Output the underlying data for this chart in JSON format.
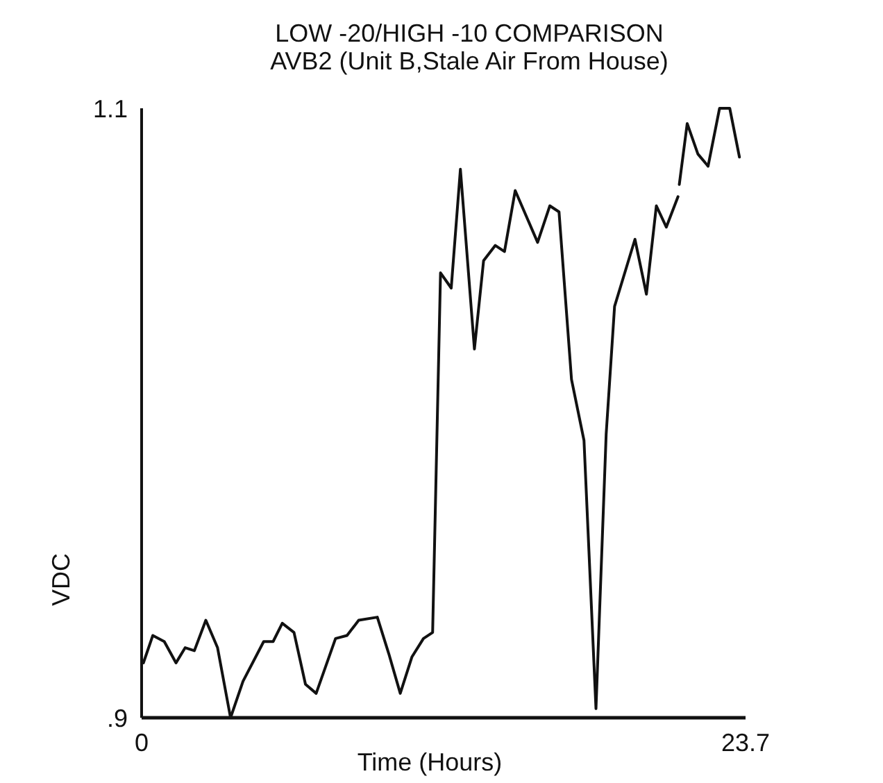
{
  "chart_data": {
    "type": "line",
    "title": "LOW -20/HIGH -10 COMPARISON",
    "subtitle": "AVB2 (Unit B,Stale Air From House)",
    "xlabel": "Time (Hours)",
    "ylabel": "VDC",
    "x": [
      0.07,
      0.44,
      0.89,
      1.35,
      1.71,
      2.07,
      2.52,
      2.98,
      3.49,
      3.98,
      4.79,
      5.16,
      5.52,
      5.98,
      6.43,
      6.85,
      7.61,
      8.06,
      8.52,
      9.25,
      9.7,
      10.15,
      10.61,
      11.06,
      11.42,
      11.73,
      12.15,
      12.51,
      13.06,
      13.42,
      13.88,
      14.24,
      14.66,
      15.54,
      16.02,
      16.38,
      16.87,
      17.36,
      17.83,
      18.23,
      18.56,
      19.36,
      19.81,
      20.2,
      20.59,
      21.05,
      21.08,
      21.1,
      21.41,
      21.83,
      22.23,
      22.68,
      23.08,
      23.46
    ],
    "series": [
      {
        "color": "#111111",
        "values": [
          0.918,
          0.927,
          0.925,
          0.918,
          0.923,
          0.922,
          0.932,
          0.923,
          0.9,
          0.912,
          0.925,
          0.925,
          0.931,
          0.928,
          0.911,
          0.908,
          0.926,
          0.927,
          0.932,
          0.933,
          0.921,
          0.908,
          0.92,
          0.926,
          0.928,
          1.046,
          1.041,
          1.08,
          1.021,
          1.05,
          1.055,
          1.053,
          1.073,
          1.056,
          1.068,
          1.066,
          1.011,
          0.991,
          0.903,
          0.993,
          1.035,
          1.057,
          1.039,
          1.068,
          1.061,
          1.071,
          null,
          1.075,
          1.095,
          1.085,
          1.081,
          1.1,
          1.1,
          1.084
        ]
      }
    ],
    "xlim": [
      0,
      23.7
    ],
    "xticks": [
      0,
      23.7
    ],
    "ylim": [
      0.9,
      1.1
    ],
    "yticks": [
      {
        "value": 0.9,
        "label": ".9"
      },
      1.1
    ],
    "grid": false,
    "marker": "none",
    "line_style": "solid"
  }
}
